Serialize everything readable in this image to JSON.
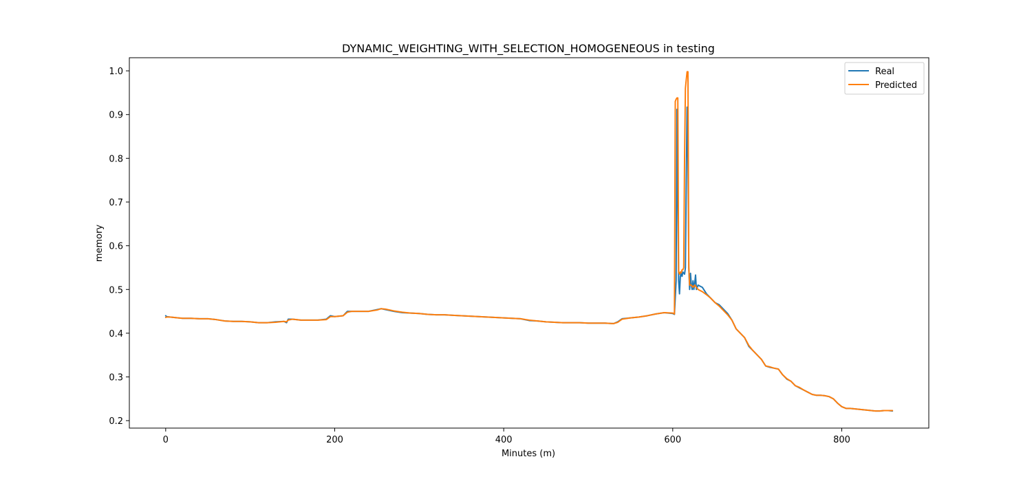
{
  "chart_data": {
    "type": "line",
    "title": "DYNAMIC_WEIGHTING_WITH_SELECTION_HOMOGENEOUS in testing",
    "xlabel": "Minutes (m)",
    "ylabel": "memory",
    "xlim": [
      -43,
      903
    ],
    "ylim": [
      0.183,
      1.03
    ],
    "xticks": [
      0,
      200,
      400,
      600,
      800
    ],
    "yticks": [
      0.2,
      0.3,
      0.4,
      0.5,
      0.6,
      0.7,
      0.8,
      0.9,
      1.0
    ],
    "ytick_labels": [
      "0.2",
      "0.3",
      "0.4",
      "0.5",
      "0.6",
      "0.7",
      "0.8",
      "0.9",
      "1.0"
    ],
    "grid": false,
    "legend_position": "top-right",
    "colors": {
      "real": "#1f77b4",
      "predicted": "#ff7f0e"
    },
    "series": [
      {
        "name": "Real",
        "x": [
          0,
          1,
          5,
          10,
          20,
          30,
          40,
          50,
          60,
          70,
          80,
          90,
          100,
          110,
          120,
          130,
          140,
          143,
          145,
          150,
          160,
          170,
          180,
          190,
          195,
          200,
          210,
          215,
          220,
          230,
          240,
          250,
          255,
          260,
          270,
          280,
          290,
          300,
          310,
          320,
          330,
          340,
          350,
          360,
          370,
          380,
          390,
          400,
          410,
          420,
          430,
          440,
          450,
          460,
          470,
          480,
          490,
          500,
          510,
          520,
          530,
          535,
          540,
          550,
          560,
          570,
          580,
          590,
          600,
          602,
          604,
          605,
          606,
          607,
          608,
          609,
          610,
          611,
          612,
          614,
          615,
          616,
          617,
          618,
          619,
          620,
          621,
          622,
          623,
          624,
          625,
          626,
          627,
          628,
          630,
          635,
          640,
          645,
          650,
          655,
          660,
          665,
          670,
          675,
          680,
          685,
          690,
          695,
          700,
          705,
          710,
          715,
          720,
          725,
          730,
          735,
          740,
          745,
          750,
          755,
          760,
          765,
          770,
          775,
          780,
          785,
          790,
          795,
          800,
          805,
          810,
          815,
          820,
          825,
          830,
          835,
          840,
          845,
          850,
          855,
          860
        ],
        "y": [
          0.44,
          0.438,
          0.437,
          0.436,
          0.434,
          0.434,
          0.433,
          0.433,
          0.431,
          0.428,
          0.427,
          0.427,
          0.426,
          0.424,
          0.424,
          0.426,
          0.427,
          0.424,
          0.432,
          0.432,
          0.43,
          0.43,
          0.43,
          0.432,
          0.44,
          0.438,
          0.44,
          0.45,
          0.45,
          0.45,
          0.45,
          0.454,
          0.456,
          0.454,
          0.45,
          0.447,
          0.446,
          0.445,
          0.443,
          0.442,
          0.442,
          0.441,
          0.44,
          0.439,
          0.438,
          0.437,
          0.436,
          0.435,
          0.434,
          0.433,
          0.429,
          0.428,
          0.426,
          0.425,
          0.424,
          0.424,
          0.424,
          0.423,
          0.423,
          0.423,
          0.422,
          0.426,
          0.433,
          0.435,
          0.437,
          0.44,
          0.444,
          0.447,
          0.445,
          0.443,
          0.52,
          0.912,
          0.7,
          0.52,
          0.49,
          0.53,
          0.537,
          0.53,
          0.54,
          0.535,
          0.55,
          0.75,
          0.917,
          0.8,
          0.55,
          0.5,
          0.537,
          0.51,
          0.5,
          0.52,
          0.5,
          0.515,
          0.533,
          0.5,
          0.51,
          0.505,
          0.49,
          0.48,
          0.47,
          0.465,
          0.455,
          0.445,
          0.43,
          0.41,
          0.4,
          0.39,
          0.37,
          0.36,
          0.35,
          0.34,
          0.325,
          0.322,
          0.32,
          0.318,
          0.305,
          0.295,
          0.29,
          0.28,
          0.275,
          0.27,
          0.265,
          0.26,
          0.258,
          0.258,
          0.257,
          0.255,
          0.25,
          0.24,
          0.232,
          0.228,
          0.228,
          0.227,
          0.226,
          0.225,
          0.224,
          0.223,
          0.222,
          0.222,
          0.223,
          0.223,
          0.222
        ]
      },
      {
        "name": "Predicted",
        "x": [
          0,
          1,
          5,
          10,
          20,
          30,
          40,
          50,
          60,
          70,
          80,
          90,
          100,
          110,
          120,
          130,
          140,
          143,
          145,
          150,
          160,
          170,
          180,
          190,
          195,
          200,
          210,
          215,
          220,
          230,
          240,
          250,
          255,
          260,
          270,
          280,
          290,
          300,
          310,
          320,
          330,
          340,
          350,
          360,
          370,
          380,
          390,
          400,
          410,
          420,
          430,
          440,
          450,
          460,
          470,
          480,
          490,
          500,
          510,
          520,
          530,
          535,
          540,
          550,
          560,
          570,
          580,
          590,
          600,
          602,
          603,
          604,
          605,
          606,
          607,
          608,
          609,
          610,
          611,
          612,
          613,
          614,
          615,
          616,
          617,
          618,
          619,
          620,
          622,
          624,
          626,
          628,
          630,
          635,
          640,
          645,
          650,
          655,
          660,
          665,
          670,
          675,
          680,
          685,
          690,
          695,
          700,
          705,
          710,
          715,
          720,
          725,
          730,
          735,
          740,
          745,
          750,
          755,
          760,
          765,
          770,
          775,
          780,
          785,
          790,
          795,
          800,
          805,
          810,
          815,
          820,
          825,
          830,
          835,
          840,
          845,
          850,
          855,
          860
        ],
        "y": [
          0.436,
          0.437,
          0.437,
          0.436,
          0.434,
          0.434,
          0.433,
          0.433,
          0.431,
          0.428,
          0.427,
          0.427,
          0.426,
          0.424,
          0.424,
          0.425,
          0.427,
          0.426,
          0.43,
          0.432,
          0.43,
          0.43,
          0.43,
          0.431,
          0.438,
          0.438,
          0.44,
          0.448,
          0.45,
          0.45,
          0.45,
          0.453,
          0.456,
          0.455,
          0.451,
          0.448,
          0.446,
          0.445,
          0.443,
          0.442,
          0.442,
          0.441,
          0.44,
          0.439,
          0.438,
          0.437,
          0.436,
          0.435,
          0.434,
          0.433,
          0.43,
          0.428,
          0.426,
          0.425,
          0.424,
          0.424,
          0.424,
          0.423,
          0.423,
          0.423,
          0.422,
          0.425,
          0.432,
          0.435,
          0.437,
          0.44,
          0.444,
          0.447,
          0.446,
          0.444,
          0.93,
          0.935,
          0.938,
          0.938,
          0.54,
          0.535,
          0.54,
          0.538,
          0.545,
          0.545,
          0.55,
          0.8,
          0.96,
          0.98,
          0.998,
          0.998,
          0.55,
          0.51,
          0.51,
          0.505,
          0.51,
          0.505,
          0.5,
          0.495,
          0.488,
          0.48,
          0.47,
          0.462,
          0.452,
          0.442,
          0.43,
          0.41,
          0.4,
          0.39,
          0.372,
          0.36,
          0.35,
          0.34,
          0.325,
          0.323,
          0.32,
          0.318,
          0.305,
          0.296,
          0.29,
          0.28,
          0.276,
          0.27,
          0.265,
          0.26,
          0.258,
          0.258,
          0.257,
          0.255,
          0.25,
          0.24,
          0.232,
          0.228,
          0.228,
          0.227,
          0.226,
          0.225,
          0.224,
          0.223,
          0.222,
          0.222,
          0.223,
          0.223,
          0.223
        ]
      }
    ]
  }
}
